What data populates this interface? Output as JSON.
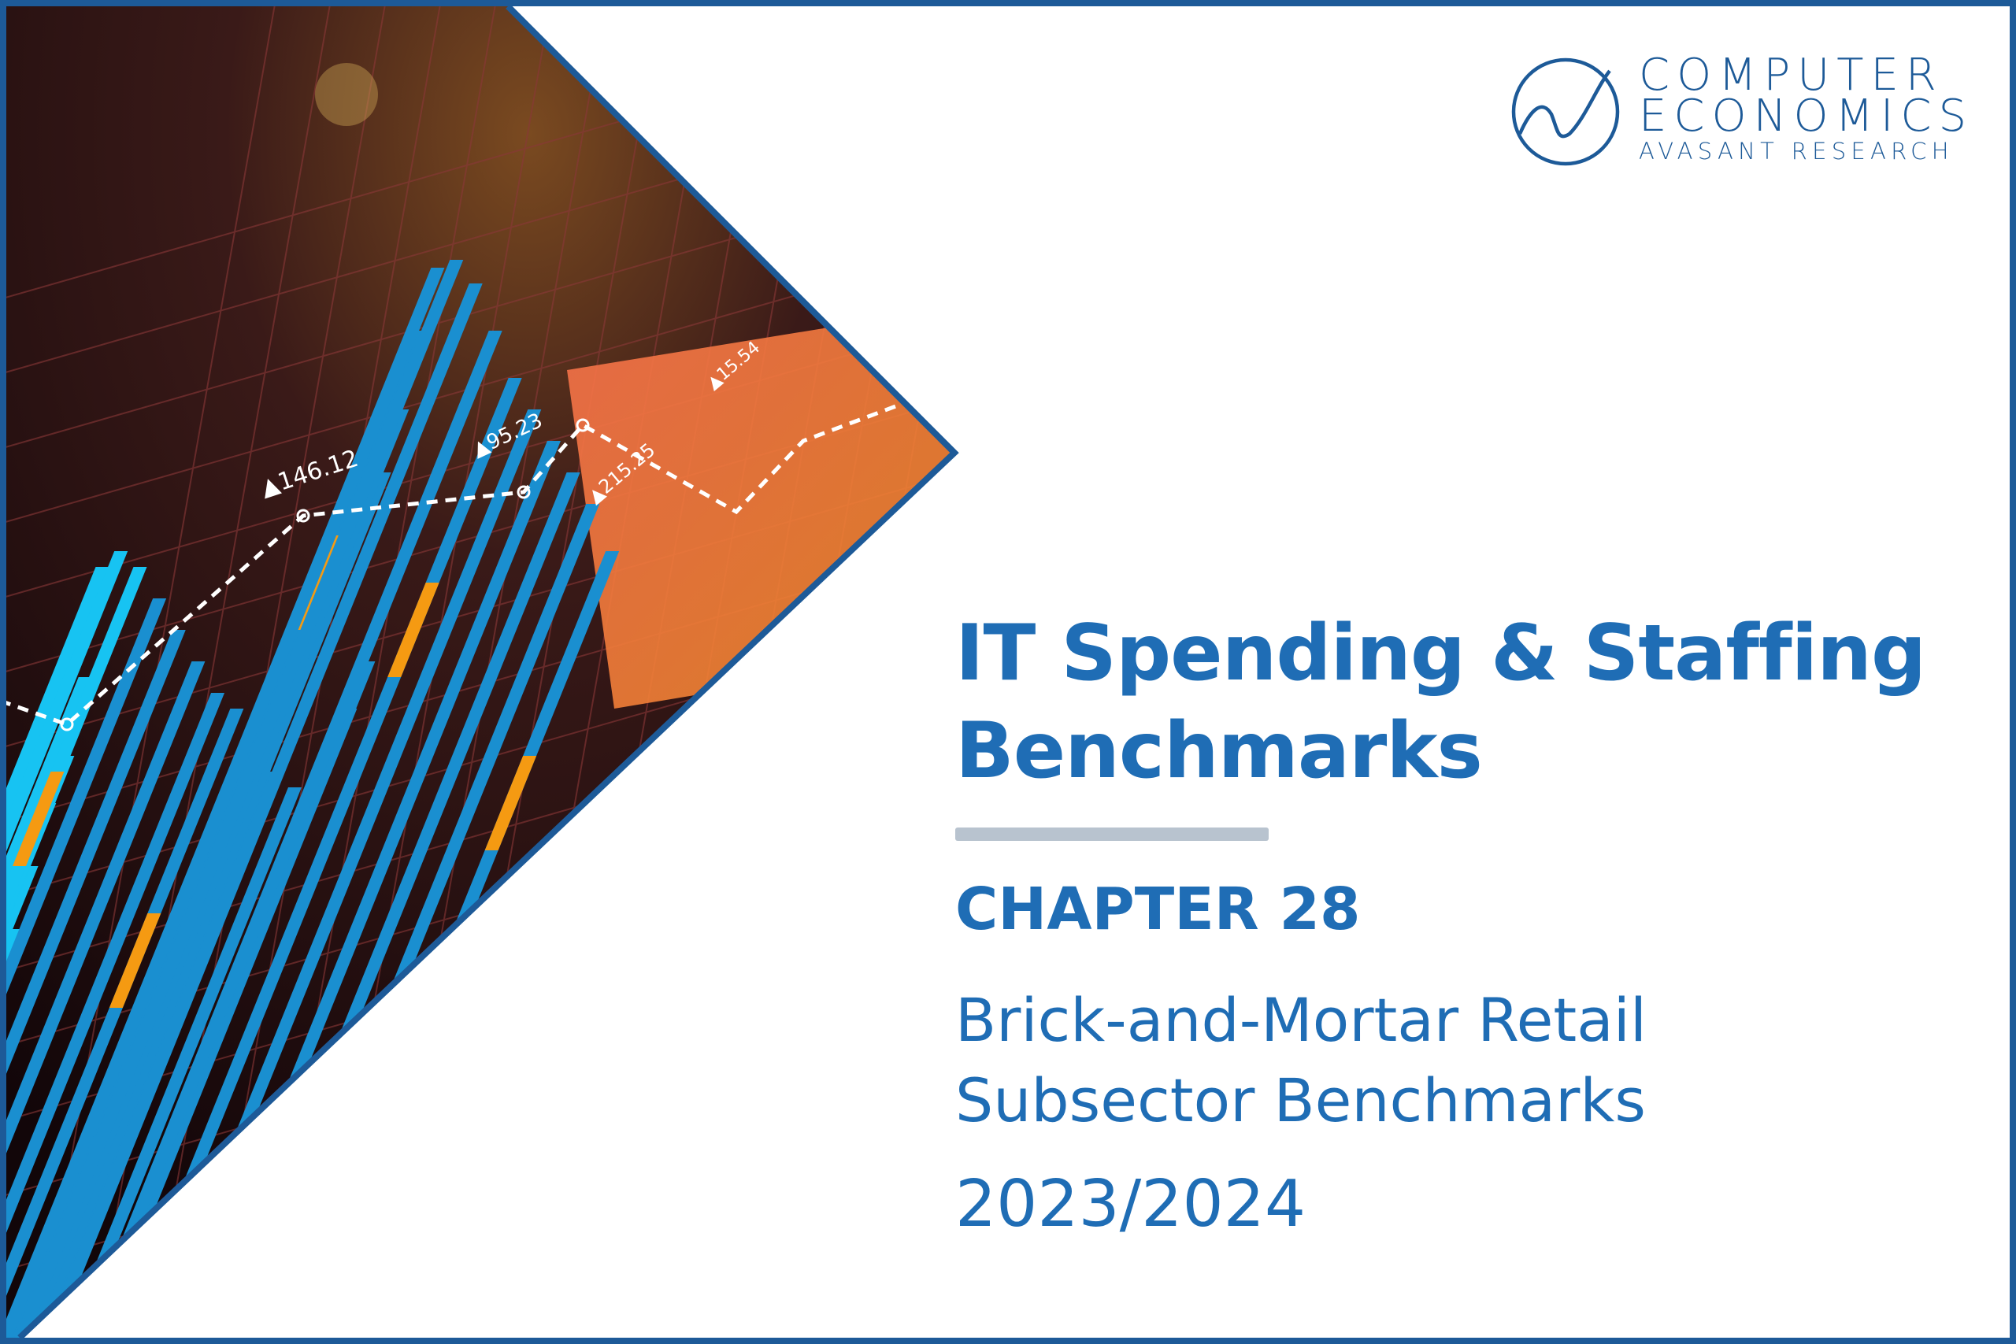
{
  "logo": {
    "line1": "COMPUTER",
    "line2": "ECONOMICS",
    "line3": "AVASANT RESEARCH",
    "color": "#1d5a98"
  },
  "cover": {
    "title_line1": "IT Spending & Staffing",
    "title_line2": "Benchmarks",
    "chapter": "CHAPTER 28",
    "subtitle_line1": "Brick-and-Mortar Retail",
    "subtitle_line2": "Subsector Benchmarks",
    "year": "2023/2024",
    "accent_color": "#1f6db5",
    "frame_color": "#1d5a98"
  },
  "artwork": {
    "labels": [
      "▲146.12",
      "▲95.23",
      "▲215.25",
      "▲15.54"
    ],
    "bar_colors": [
      "#1a8fd0",
      "#17c3f2",
      "#f59a12",
      "#f2683a"
    ]
  }
}
